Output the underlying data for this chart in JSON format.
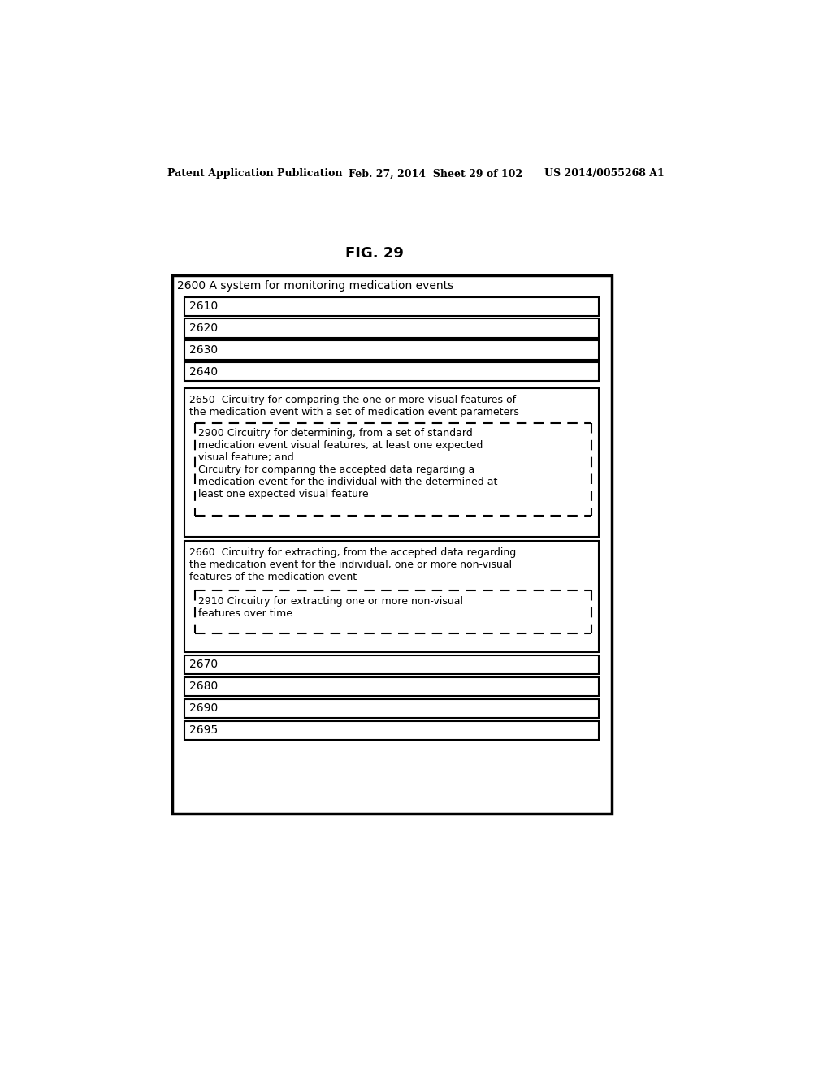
{
  "bg_color": "#ffffff",
  "header_line1": "Patent Application Publication",
  "header_line2": "Feb. 27, 2014  Sheet 29 of 102",
  "header_line3": "US 2014/0055268 A1",
  "fig_title": "FIG. 29",
  "outer_box_label": "2600 A system for monitoring medication events",
  "simple_boxes": [
    "2610",
    "2620",
    "2630",
    "2640"
  ],
  "box_2650_label": "2650  Circuitry for comparing the one or more visual features of\nthe medication event with a set of medication event parameters",
  "box_2900_label": "2900 Circuitry for determining, from a set of standard\nmedication event visual features, at least one expected\nvisual feature; and\nCircuitry for comparing the accepted data regarding a\nmedication event for the individual with the determined at\nleast one expected visual feature",
  "box_2660_label": "2660  Circuitry for extracting, from the accepted data regarding\nthe medication event for the individual, one or more non-visual\nfeatures of the medication event",
  "box_2910_label": "2910 Circuitry for extracting one or more non-visual\nfeatures over time",
  "simple_boxes_bottom": [
    "2670",
    "2680",
    "2690",
    "2695"
  ]
}
